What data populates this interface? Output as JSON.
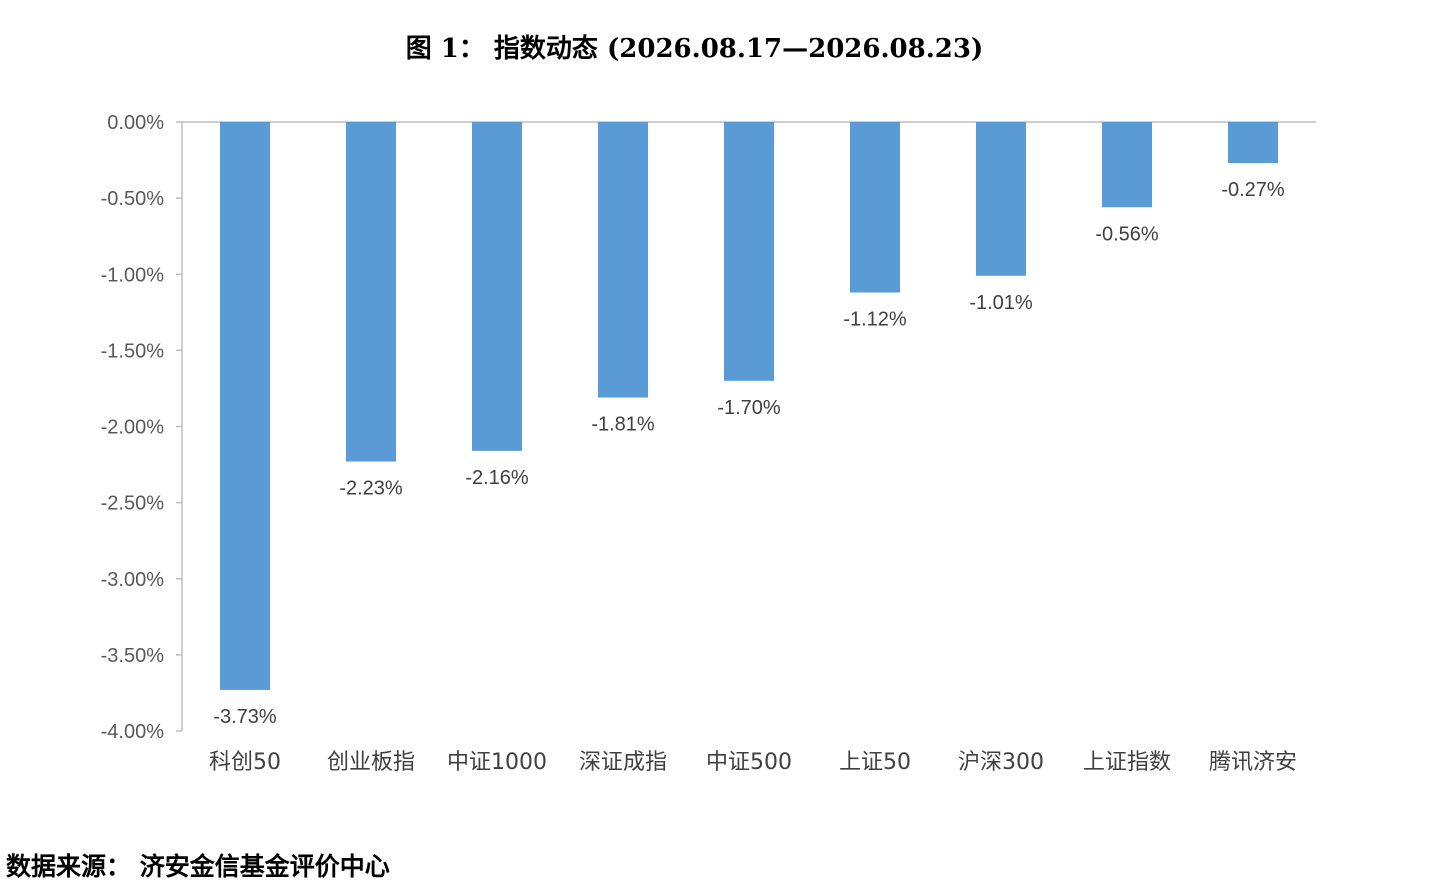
{
  "title": "图 1： 指数动态 (2026.08.17—2026.08.23)",
  "source": "数据来源： 济安金信基金评价中心",
  "chart_data": {
    "type": "bar",
    "categories": [
      "科创50",
      "创业板指",
      "中证1000",
      "深证成指",
      "中证500",
      "上证50",
      "沪深300",
      "上证指数",
      "腾讯济安"
    ],
    "values": [
      -3.73,
      -2.23,
      -2.16,
      -1.81,
      -1.7,
      -1.12,
      -1.01,
      -0.56,
      -0.27
    ],
    "data_labels": [
      "-3.73%",
      "-2.23%",
      "-2.16%",
      "-1.81%",
      "-1.70%",
      "-1.12%",
      "-1.01%",
      "-0.56%",
      "-0.27%"
    ],
    "y_ticks": [
      0,
      -0.5,
      -1.0,
      -1.5,
      -2.0,
      -2.5,
      -3.0,
      -3.5,
      -4.0
    ],
    "y_tick_labels": [
      "0.00%",
      "-0.50%",
      "-1.00%",
      "-1.50%",
      "-2.00%",
      "-2.50%",
      "-3.00%",
      "-3.50%",
      "-4.00%"
    ],
    "ylim": [
      -4.0,
      0
    ],
    "grid": false,
    "legend": "none",
    "bar_color": "#5B9BD5",
    "axis_color": "#BFBFBF"
  }
}
